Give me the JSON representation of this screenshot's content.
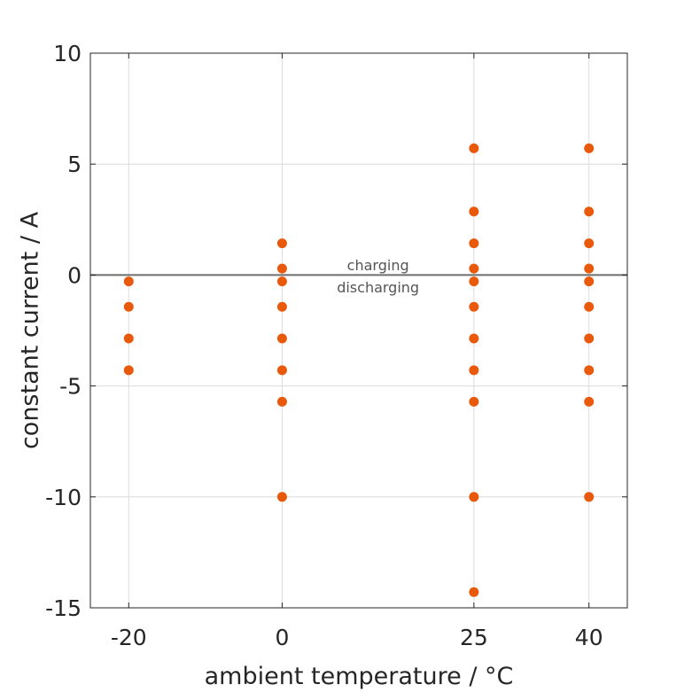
{
  "chart_data": {
    "type": "scatter",
    "xlabel": "ambient temperature / °C",
    "ylabel": "constant current / A",
    "xlim": [
      -25,
      45
    ],
    "ylim": [
      -15,
      10
    ],
    "xticks": [
      -20,
      0,
      25,
      40
    ],
    "xtick_labels": [
      "-20",
      "0",
      "25",
      "40"
    ],
    "yticks": [
      -15,
      -10,
      -5,
      0,
      5,
      10
    ],
    "ytick_labels": [
      "-15",
      "-10",
      "-5",
      "0",
      "5",
      "10"
    ],
    "grid": true,
    "marker_color": "#e8590c",
    "reference_line": {
      "y": 0,
      "color": "#6e6e6e"
    },
    "annotations": [
      {
        "text": "charging",
        "x": 12.5,
        "y": 0.45
      },
      {
        "text": "discharging",
        "x": 12.5,
        "y": -0.55
      }
    ],
    "points": [
      {
        "x": -20,
        "y": -0.29
      },
      {
        "x": -20,
        "y": -1.43
      },
      {
        "x": -20,
        "y": -2.86
      },
      {
        "x": -20,
        "y": -4.29
      },
      {
        "x": 0,
        "y": 1.43
      },
      {
        "x": 0,
        "y": 0.29
      },
      {
        "x": 0,
        "y": -0.29
      },
      {
        "x": 0,
        "y": -1.43
      },
      {
        "x": 0,
        "y": -2.86
      },
      {
        "x": 0,
        "y": -4.29
      },
      {
        "x": 0,
        "y": -5.71
      },
      {
        "x": 0,
        "y": -10.0
      },
      {
        "x": 25,
        "y": 5.71
      },
      {
        "x": 25,
        "y": 2.86
      },
      {
        "x": 25,
        "y": 1.43
      },
      {
        "x": 25,
        "y": 0.29
      },
      {
        "x": 25,
        "y": -0.29
      },
      {
        "x": 25,
        "y": -1.43
      },
      {
        "x": 25,
        "y": -2.86
      },
      {
        "x": 25,
        "y": -4.29
      },
      {
        "x": 25,
        "y": -5.71
      },
      {
        "x": 25,
        "y": -10.0
      },
      {
        "x": 25,
        "y": -14.29
      },
      {
        "x": 40,
        "y": 5.71
      },
      {
        "x": 40,
        "y": 2.86
      },
      {
        "x": 40,
        "y": 1.43
      },
      {
        "x": 40,
        "y": 0.29
      },
      {
        "x": 40,
        "y": -0.29
      },
      {
        "x": 40,
        "y": -1.43
      },
      {
        "x": 40,
        "y": -2.86
      },
      {
        "x": 40,
        "y": -4.29
      },
      {
        "x": 40,
        "y": -5.71
      },
      {
        "x": 40,
        "y": -10.0
      }
    ]
  }
}
